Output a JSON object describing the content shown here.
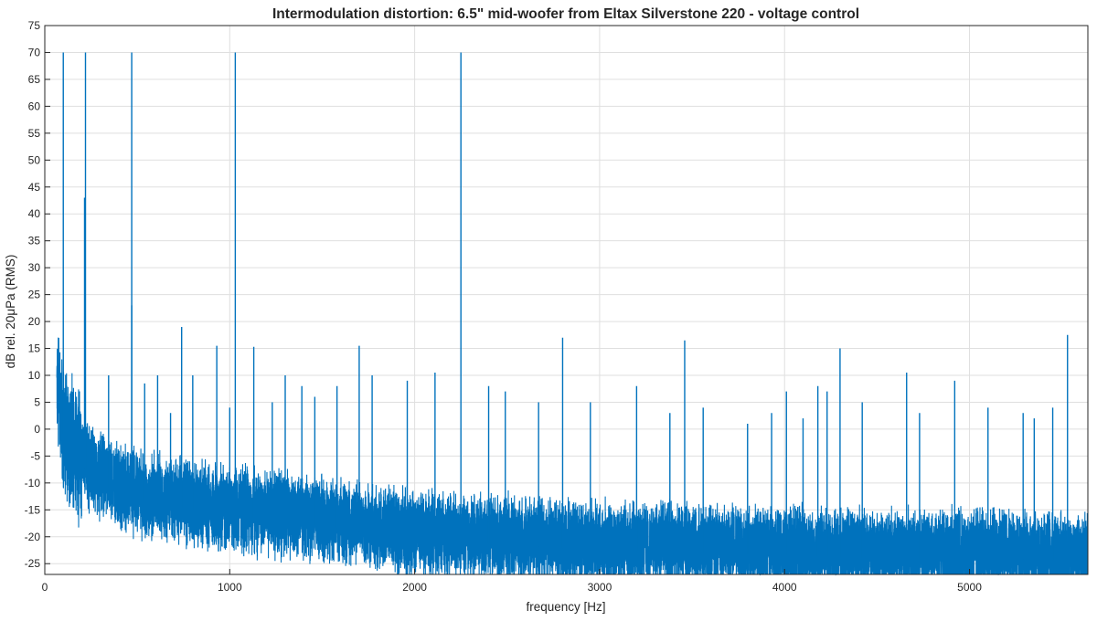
{
  "chart_data": {
    "type": "line",
    "title": "Intermodulation distortion: 6.5\" mid-woofer from Eltax Silverstone 220 - voltage control",
    "xlabel": "frequency [Hz]",
    "ylabel": "dB rel. 20μPa (RMS)",
    "xlim": [
      0,
      5640
    ],
    "ylim": [
      -27,
      75
    ],
    "x_ticks": [
      0,
      1000,
      2000,
      3000,
      4000,
      5000
    ],
    "y_ticks": [
      -25,
      -20,
      -15,
      -10,
      -5,
      0,
      5,
      10,
      15,
      20,
      25,
      30,
      35,
      40,
      45,
      50,
      55,
      60,
      65,
      70,
      75
    ],
    "grid": true,
    "series_color": "#0072BD",
    "noise_floor": {
      "x": [
        65,
        80,
        100,
        130,
        170,
        230,
        300,
        400,
        500,
        700,
        1000,
        1500,
        2000,
        2500,
        3000,
        3500,
        4000,
        4500,
        5000,
        5640
      ],
      "y": [
        10,
        5,
        1,
        -1,
        -3,
        -6,
        -8,
        -10,
        -11,
        -12.5,
        -14,
        -16,
        -18.5,
        -19.5,
        -20.5,
        -21,
        -21.5,
        -22,
        -22,
        -22.5
      ]
    },
    "peaks": {
      "x": [
        100,
        220,
        470,
        1030,
        2250,
        215,
        470,
        740,
        930,
        1130,
        1700,
        2800,
        3460,
        4300,
        5530,
        345,
        540,
        610,
        680,
        800,
        1000,
        1230,
        1300,
        1390,
        1460,
        1580,
        1770,
        1960,
        2110,
        2400,
        2490,
        2670,
        2950,
        3200,
        3380,
        3560,
        3800,
        3930,
        4010,
        4100,
        4180,
        4230,
        4420,
        4660,
        4730,
        4920,
        5100,
        5290,
        5350,
        5450
      ],
      "y": [
        70,
        70,
        70,
        70,
        70,
        43,
        23,
        19,
        15.5,
        15.3,
        15.5,
        17,
        16.5,
        15,
        17.5,
        10,
        8.5,
        10,
        3,
        10,
        4,
        5,
        10,
        8,
        6,
        8,
        10,
        9,
        10.5,
        8,
        7,
        5,
        5,
        8,
        3,
        4,
        1,
        3,
        7,
        2,
        8,
        7,
        5,
        10.5,
        3,
        9,
        4,
        3,
        2,
        4
      ]
    }
  }
}
